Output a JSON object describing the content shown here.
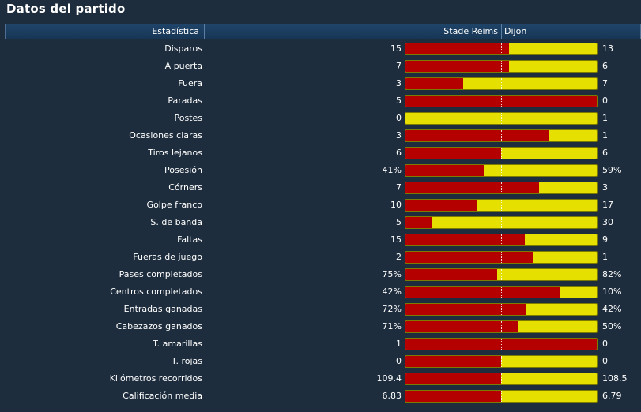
{
  "title": "Datos del partido",
  "header": {
    "stat_label": "Estadística",
    "home_team": "Stade Reims",
    "away_team": "Dijon"
  },
  "colors": {
    "home": "#b50000",
    "away": "#e6e000",
    "background": "#1e2d3d"
  },
  "stats": [
    {
      "label": "Disparos",
      "home": "15",
      "away": "13",
      "home_share": 0.54
    },
    {
      "label": "A puerta",
      "home": "7",
      "away": "6",
      "home_share": 0.54
    },
    {
      "label": "Fuera",
      "home": "3",
      "away": "7",
      "home_share": 0.3
    },
    {
      "label": "Paradas",
      "home": "5",
      "away": "0",
      "home_share": 1.0
    },
    {
      "label": "Postes",
      "home": "0",
      "away": "1",
      "home_share": 0.0
    },
    {
      "label": "Ocasiones claras",
      "home": "3",
      "away": "1",
      "home_share": 0.75
    },
    {
      "label": "Tiros lejanos",
      "home": "6",
      "away": "6",
      "home_share": 0.5
    },
    {
      "label": "Posesión",
      "home": "41%",
      "away": "59%",
      "home_share": 0.41
    },
    {
      "label": "Córners",
      "home": "7",
      "away": "3",
      "home_share": 0.7
    },
    {
      "label": "Golpe franco",
      "home": "10",
      "away": "17",
      "home_share": 0.37
    },
    {
      "label": "S. de banda",
      "home": "5",
      "away": "30",
      "home_share": 0.14
    },
    {
      "label": "Faltas",
      "home": "15",
      "away": "9",
      "home_share": 0.625
    },
    {
      "label": "Fueras de juego",
      "home": "2",
      "away": "1",
      "home_share": 0.667
    },
    {
      "label": "Pases completados",
      "home": "75%",
      "away": "82%",
      "home_share": 0.478
    },
    {
      "label": "Centros completados",
      "home": "42%",
      "away": "10%",
      "home_share": 0.808
    },
    {
      "label": "Entradas ganadas",
      "home": "72%",
      "away": "42%",
      "home_share": 0.632
    },
    {
      "label": "Cabezazos ganados",
      "home": "71%",
      "away": "50%",
      "home_share": 0.587
    },
    {
      "label": "T. amarillas",
      "home": "1",
      "away": "0",
      "home_share": 1.0
    },
    {
      "label": "T. rojas",
      "home": "0",
      "away": "0",
      "home_share": 0.5
    },
    {
      "label": "Kilómetros recorridos",
      "home": "109.4",
      "away": "108.5",
      "home_share": 0.502
    },
    {
      "label": "Calificación media",
      "home": "6.83",
      "away": "6.79",
      "home_share": 0.501
    }
  ]
}
